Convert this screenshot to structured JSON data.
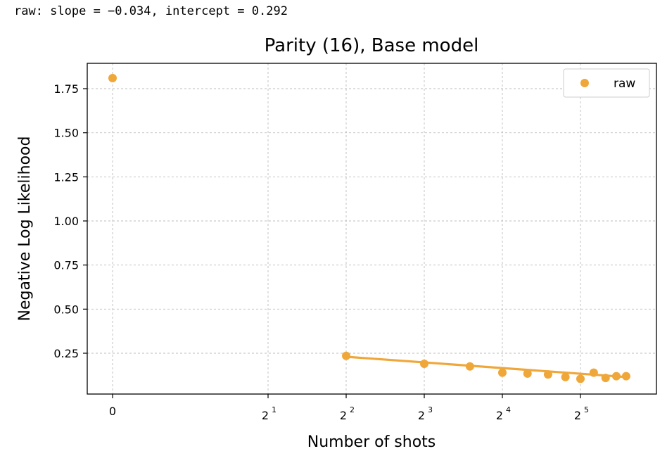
{
  "console_output": "raw: slope = −0.034, intercept = 0.292",
  "colors": {
    "series": "#f0a73a",
    "grid": "#bdbdbd",
    "axes": "#000000"
  },
  "chart_data": {
    "type": "scatter",
    "title": "Parity (16), Base model",
    "xlabel": "Number of shots",
    "ylabel": "Negative Log Likelihood",
    "x_scale": "log2 (symlog, 0 shown)",
    "xlim": [
      0,
      48
    ],
    "ylim": [
      0.0,
      1.88
    ],
    "x_ticks": [
      {
        "value": 0,
        "base": "0",
        "exp": ""
      },
      {
        "value": 2,
        "base": "2",
        "exp": "1"
      },
      {
        "value": 4,
        "base": "2",
        "exp": "2"
      },
      {
        "value": 8,
        "base": "2",
        "exp": "3"
      },
      {
        "value": 16,
        "base": "2",
        "exp": "4"
      },
      {
        "value": 32,
        "base": "2",
        "exp": "5"
      }
    ],
    "y_ticks": [
      "0.25",
      "0.50",
      "0.75",
      "1.00",
      "1.25",
      "1.50",
      "1.75"
    ],
    "grid": true,
    "legend": {
      "position": "top-right",
      "entries": [
        "raw"
      ]
    },
    "series": [
      {
        "name": "raw",
        "points": [
          {
            "x": 0,
            "y": 1.81
          },
          {
            "x": 4,
            "y": 0.235
          },
          {
            "x": 8,
            "y": 0.19
          },
          {
            "x": 12,
            "y": 0.175
          },
          {
            "x": 16,
            "y": 0.14
          },
          {
            "x": 20,
            "y": 0.135
          },
          {
            "x": 24,
            "y": 0.13
          },
          {
            "x": 28,
            "y": 0.115
          },
          {
            "x": 32,
            "y": 0.105
          },
          {
            "x": 36,
            "y": 0.14
          },
          {
            "x": 40,
            "y": 0.11
          },
          {
            "x": 44,
            "y": 0.12
          },
          {
            "x": 48,
            "y": 0.12
          }
        ]
      }
    ],
    "fit_line": {
      "x_start": 4,
      "x_end": 48,
      "y_start": 0.23,
      "y_end": 0.115
    }
  }
}
